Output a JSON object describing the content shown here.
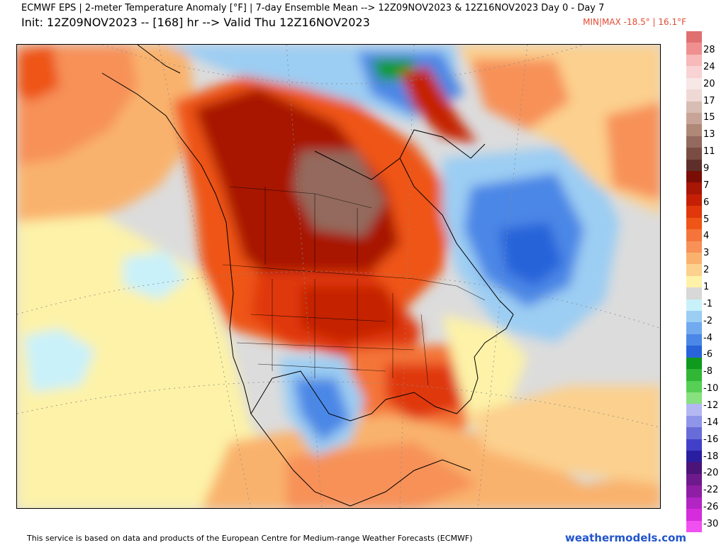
{
  "header": {
    "title_line1": "ECMWF EPS | 2-meter Temperature Anomaly [°F] | 7-day Ensemble Mean --> 12Z09NOV2023 & 12Z16NOV2023   Day 0 - Day 7",
    "title_line2": "Init: 12Z09NOV2023 -- [168] hr --> Valid Thu 12Z16NOV2023",
    "minmax": "MIN|MAX -18.5° | 16.1°F"
  },
  "colorbar": {
    "colors": [
      "#e07070",
      "#f08f8f",
      "#f7b9b9",
      "#f9d3d3",
      "#f7e7e7",
      "#eed9d4",
      "#d8bdb4",
      "#c7a497",
      "#b08877",
      "#936a5d",
      "#7a4d43",
      "#5e2f2a",
      "#7a0d05",
      "#a81606",
      "#c52006",
      "#e0380a",
      "#ee5516",
      "#f47439",
      "#f79158",
      "#f9b26d",
      "#fcd08e",
      "#fdf2a8",
      "#d8d8d8",
      "#c9f1fa",
      "#9ccdf3",
      "#71aaef",
      "#4b87e6",
      "#2863d9",
      "#0f9a1e",
      "#31b636",
      "#55cf55",
      "#88e07e",
      "#b4b8f2",
      "#8f95e8",
      "#686cd8",
      "#4240c8",
      "#2a1ea0",
      "#4c1478",
      "#6e1a8c",
      "#8e1ea4",
      "#b224c3",
      "#d52cdc",
      "#f050f0"
    ],
    "labels": [
      "28",
      "24",
      "20",
      "17",
      "15",
      "13",
      "11",
      "9",
      "7",
      "6",
      "5",
      "4",
      "3",
      "2",
      "1",
      "-1",
      "-2",
      "-4",
      "-6",
      "-8",
      "-10",
      "-12",
      "-14",
      "-16",
      "-18",
      "-20",
      "-22",
      "-26",
      "-30"
    ]
  },
  "footer": {
    "attribution": "This service is based on data and products of the European Centre for Medium-range Weather Forecasts (ECMWF)",
    "brand": "weathermodels.com"
  }
}
